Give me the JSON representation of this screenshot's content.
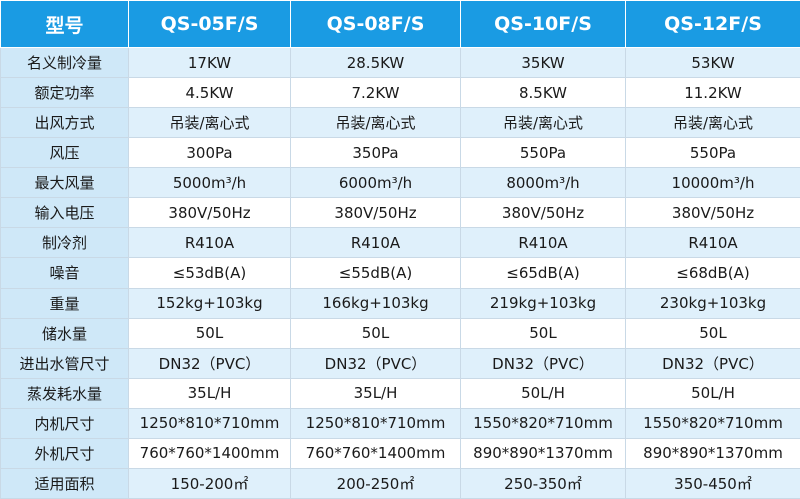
{
  "table": {
    "header": [
      "型号",
      "QS-05F/S",
      "QS-08F/S",
      "QS-10F/S",
      "QS-12F/S"
    ],
    "rows": [
      [
        "名义制冷量",
        "17KW",
        "28.5KW",
        "35KW",
        "53KW"
      ],
      [
        "额定功率",
        "4.5KW",
        "7.2KW",
        "8.5KW",
        "11.2KW"
      ],
      [
        "出风方式",
        "吊装/离心式",
        "吊装/离心式",
        "吊装/离心式",
        "吊装/离心式"
      ],
      [
        "风压",
        "300Pa",
        "350Pa",
        "550Pa",
        "550Pa"
      ],
      [
        "最大风量",
        "5000m³/h",
        "6000m³/h",
        "8000m³/h",
        "10000m³/h"
      ],
      [
        "输入电压",
        "380V/50Hz",
        "380V/50Hz",
        "380V/50Hz",
        "380V/50Hz"
      ],
      [
        "制冷剂",
        "R410A",
        "R410A",
        "R410A",
        "R410A"
      ],
      [
        "噪音",
        "≤53dB(A)",
        "≤55dB(A)",
        "≤65dB(A)",
        "≤68dB(A)"
      ],
      [
        "重量",
        "152kg+103kg",
        "166kg+103kg",
        "219kg+103kg",
        "230kg+103kg"
      ],
      [
        "储水量",
        "50L",
        "50L",
        "50L",
        "50L"
      ],
      [
        "进出水管尺寸",
        "DN32（PVC）",
        "DN32（PVC）",
        "DN32（PVC）",
        "DN32（PVC）"
      ],
      [
        "蒸发耗水量",
        "35L/H",
        "35L/H",
        "50L/H",
        "50L/H"
      ],
      [
        "内机尺寸",
        "1250*810*710mm",
        "1250*810*710mm",
        "1550*820*710mm",
        "1550*820*710mm"
      ],
      [
        "外机尺寸",
        "760*760*1400mm",
        "760*760*1400mm",
        "890*890*1370mm",
        "890*890*1370mm"
      ],
      [
        "适用面积",
        "150-200㎡",
        "200-250㎡",
        "250-350㎡",
        "350-450㎡"
      ]
    ]
  }
}
